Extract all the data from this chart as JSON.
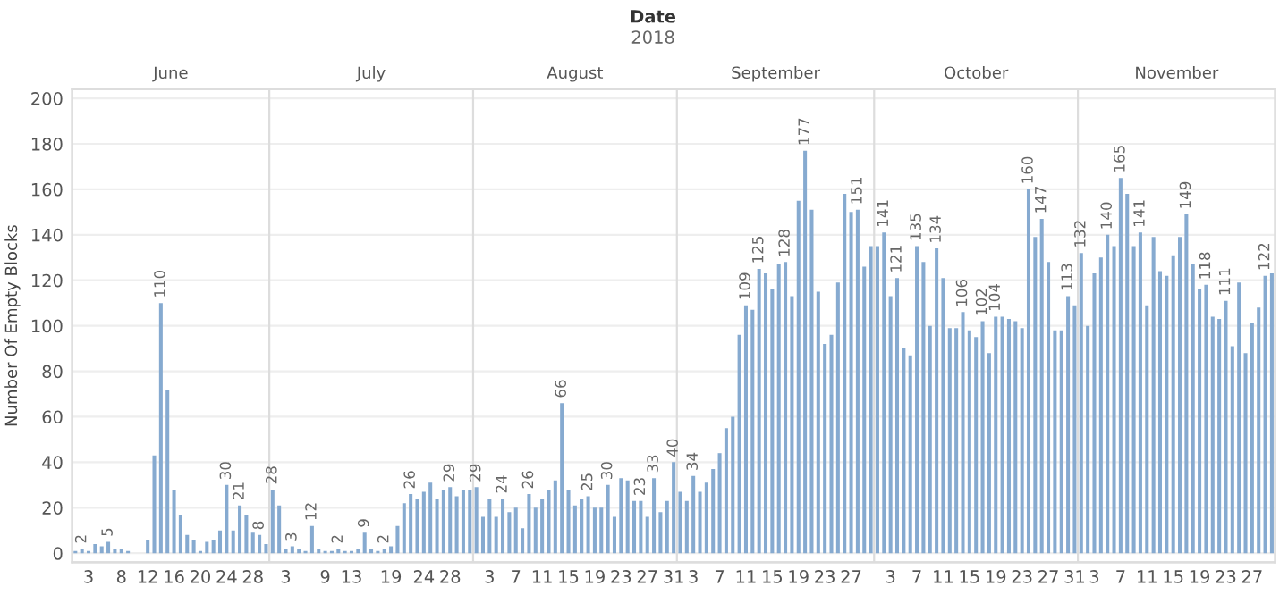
{
  "chart_data": {
    "type": "bar",
    "title": "Date",
    "subtitle": "2018",
    "ylabel": "Number Of Empty Blocks",
    "color": "#86aad0",
    "x": [
      "2018-06-01",
      "2018-06-02",
      "2018-06-03",
      "2018-06-04",
      "2018-06-05",
      "2018-06-06",
      "2018-06-07",
      "2018-06-08",
      "2018-06-09",
      "2018-06-10",
      "2018-06-11",
      "2018-06-12",
      "2018-06-13",
      "2018-06-14",
      "2018-06-15",
      "2018-06-16",
      "2018-06-17",
      "2018-06-18",
      "2018-06-19",
      "2018-06-20",
      "2018-06-21",
      "2018-06-22",
      "2018-06-23",
      "2018-06-24",
      "2018-06-25",
      "2018-06-26",
      "2018-06-27",
      "2018-06-28",
      "2018-06-29",
      "2018-06-30",
      "2018-07-01",
      "2018-07-02",
      "2018-07-03",
      "2018-07-04",
      "2018-07-05",
      "2018-07-06",
      "2018-07-07",
      "2018-07-08",
      "2018-07-09",
      "2018-07-10",
      "2018-07-11",
      "2018-07-12",
      "2018-07-13",
      "2018-07-14",
      "2018-07-15",
      "2018-07-16",
      "2018-07-17",
      "2018-07-18",
      "2018-07-19",
      "2018-07-20",
      "2018-07-21",
      "2018-07-22",
      "2018-07-23",
      "2018-07-24",
      "2018-07-25",
      "2018-07-26",
      "2018-07-27",
      "2018-07-28",
      "2018-07-29",
      "2018-07-30",
      "2018-07-31",
      "2018-08-01",
      "2018-08-02",
      "2018-08-03",
      "2018-08-04",
      "2018-08-05",
      "2018-08-06",
      "2018-08-07",
      "2018-08-08",
      "2018-08-09",
      "2018-08-10",
      "2018-08-11",
      "2018-08-12",
      "2018-08-13",
      "2018-08-14",
      "2018-08-15",
      "2018-08-16",
      "2018-08-17",
      "2018-08-18",
      "2018-08-19",
      "2018-08-20",
      "2018-08-21",
      "2018-08-22",
      "2018-08-23",
      "2018-08-24",
      "2018-08-25",
      "2018-08-26",
      "2018-08-27",
      "2018-08-28",
      "2018-08-29",
      "2018-08-30",
      "2018-08-31",
      "2018-09-01",
      "2018-09-02",
      "2018-09-03",
      "2018-09-04",
      "2018-09-05",
      "2018-09-06",
      "2018-09-07",
      "2018-09-08",
      "2018-09-09",
      "2018-09-10",
      "2018-09-11",
      "2018-09-12",
      "2018-09-13",
      "2018-09-14",
      "2018-09-15",
      "2018-09-16",
      "2018-09-17",
      "2018-09-18",
      "2018-09-19",
      "2018-09-20",
      "2018-09-21",
      "2018-09-22",
      "2018-09-23",
      "2018-09-24",
      "2018-09-25",
      "2018-09-26",
      "2018-09-27",
      "2018-09-28",
      "2018-09-29",
      "2018-09-30",
      "2018-10-01",
      "2018-10-02",
      "2018-10-03",
      "2018-10-04",
      "2018-10-05",
      "2018-10-06",
      "2018-10-07",
      "2018-10-08",
      "2018-10-09",
      "2018-10-10",
      "2018-10-11",
      "2018-10-12",
      "2018-10-13",
      "2018-10-14",
      "2018-10-15",
      "2018-10-16",
      "2018-10-17",
      "2018-10-18",
      "2018-10-19",
      "2018-10-20",
      "2018-10-21",
      "2018-10-22",
      "2018-10-23",
      "2018-10-24",
      "2018-10-25",
      "2018-10-26",
      "2018-10-27",
      "2018-10-28",
      "2018-10-29",
      "2018-10-30",
      "2018-10-31",
      "2018-11-01",
      "2018-11-02",
      "2018-11-03",
      "2018-11-04",
      "2018-11-05",
      "2018-11-06",
      "2018-11-07",
      "2018-11-08",
      "2018-11-09",
      "2018-11-10",
      "2018-11-11",
      "2018-11-12",
      "2018-11-13",
      "2018-11-14",
      "2018-11-15",
      "2018-11-16",
      "2018-11-17",
      "2018-11-18",
      "2018-11-19",
      "2018-11-20",
      "2018-11-21",
      "2018-11-22",
      "2018-11-23",
      "2018-11-24",
      "2018-11-25",
      "2018-11-26",
      "2018-11-27",
      "2018-11-28",
      "2018-11-29",
      "2018-11-30"
    ],
    "values": [
      1,
      2,
      1,
      4,
      3,
      5,
      2,
      2,
      1,
      0,
      0,
      6,
      43,
      110,
      72,
      28,
      17,
      8,
      6,
      1,
      5,
      6,
      10,
      30,
      10,
      21,
      17,
      9,
      8,
      4,
      28,
      21,
      2,
      3,
      2,
      1,
      12,
      2,
      1,
      1,
      2,
      1,
      1,
      2,
      9,
      2,
      1,
      2,
      3,
      12,
      22,
      26,
      24,
      27,
      31,
      24,
      28,
      29,
      25,
      28,
      28,
      29,
      16,
      24,
      16,
      24,
      18,
      20,
      11,
      26,
      20,
      24,
      28,
      32,
      66,
      28,
      21,
      24,
      25,
      20,
      20,
      30,
      16,
      33,
      32,
      23,
      23,
      16,
      33,
      18,
      23,
      40,
      27,
      23,
      34,
      27,
      31,
      37,
      44,
      55,
      60,
      96,
      109,
      107,
      125,
      123,
      116,
      127,
      128,
      113,
      155,
      177,
      151,
      115,
      92,
      96,
      119,
      158,
      150,
      151,
      126,
      135,
      135,
      141,
      113,
      121,
      90,
      87,
      135,
      128,
      100,
      134,
      121,
      99,
      99,
      106,
      98,
      95,
      102,
      88,
      104,
      104,
      103,
      102,
      99,
      160,
      139,
      147,
      128,
      98,
      98,
      113,
      109,
      132,
      100,
      123,
      130,
      140,
      135,
      165,
      158,
      135,
      141,
      109,
      139,
      124,
      122,
      131,
      139,
      149,
      127,
      116,
      118,
      104,
      103,
      111,
      91,
      119,
      88,
      101,
      108,
      122,
      123
    ],
    "value_labels": [
      null,
      "2",
      null,
      null,
      null,
      "5",
      null,
      null,
      null,
      null,
      null,
      null,
      null,
      "110",
      null,
      null,
      null,
      null,
      null,
      null,
      null,
      null,
      null,
      "30",
      null,
      "21",
      null,
      null,
      "8",
      null,
      "28",
      null,
      null,
      "3",
      null,
      null,
      "12",
      null,
      null,
      null,
      "2",
      null,
      null,
      null,
      "9",
      null,
      null,
      "2",
      null,
      null,
      null,
      "26",
      null,
      null,
      null,
      null,
      null,
      "29",
      null,
      null,
      null,
      "29",
      null,
      null,
      null,
      "24",
      null,
      null,
      null,
      "26",
      null,
      null,
      null,
      null,
      "66",
      null,
      null,
      null,
      "25",
      null,
      null,
      "30",
      null,
      null,
      null,
      null,
      "23",
      null,
      "33",
      null,
      null,
      "40",
      null,
      null,
      "34",
      null,
      null,
      null,
      null,
      null,
      null,
      null,
      "109",
      null,
      "125",
      null,
      null,
      null,
      "128",
      null,
      null,
      "177",
      null,
      null,
      null,
      null,
      null,
      null,
      null,
      "151",
      null,
      null,
      null,
      "141",
      null,
      "121",
      null,
      null,
      "135",
      null,
      null,
      "134",
      null,
      null,
      null,
      "106",
      null,
      null,
      "102",
      null,
      "104",
      null,
      null,
      null,
      null,
      "160",
      null,
      "147",
      null,
      null,
      null,
      "113",
      null,
      "132",
      null,
      null,
      null,
      "140",
      null,
      "165",
      null,
      null,
      "141",
      null,
      null,
      null,
      null,
      null,
      null,
      "149",
      null,
      null,
      "118",
      null,
      null,
      "111",
      null,
      null,
      null,
      null,
      null,
      "122",
      null
    ],
    "xlim": [
      "2018-05-31T12:00",
      "2018-11-30T12:00"
    ],
    "xticks": [
      {
        "value": "2018-06-03",
        "label": "3"
      },
      {
        "value": "2018-06-08",
        "label": "8"
      },
      {
        "value": "2018-06-12",
        "label": "12"
      },
      {
        "value": "2018-06-16",
        "label": "16"
      },
      {
        "value": "2018-06-20",
        "label": "20"
      },
      {
        "value": "2018-06-24",
        "label": "24"
      },
      {
        "value": "2018-06-28",
        "label": "28"
      },
      {
        "value": "2018-07-03",
        "label": "3"
      },
      {
        "value": "2018-07-09",
        "label": "9"
      },
      {
        "value": "2018-07-13",
        "label": "13"
      },
      {
        "value": "2018-07-19",
        "label": "19"
      },
      {
        "value": "2018-07-24",
        "label": "24"
      },
      {
        "value": "2018-07-28",
        "label": "28"
      },
      {
        "value": "2018-08-03",
        "label": "3"
      },
      {
        "value": "2018-08-07",
        "label": "7"
      },
      {
        "value": "2018-08-11",
        "label": "11"
      },
      {
        "value": "2018-08-15",
        "label": "15"
      },
      {
        "value": "2018-08-19",
        "label": "19"
      },
      {
        "value": "2018-08-23",
        "label": "23"
      },
      {
        "value": "2018-08-27",
        "label": "27"
      },
      {
        "value": "2018-08-31",
        "label": "31"
      },
      {
        "value": "2018-09-03",
        "label": "3"
      },
      {
        "value": "2018-09-07",
        "label": "7"
      },
      {
        "value": "2018-09-11",
        "label": "11"
      },
      {
        "value": "2018-09-15",
        "label": "15"
      },
      {
        "value": "2018-09-19",
        "label": "19"
      },
      {
        "value": "2018-09-23",
        "label": "23"
      },
      {
        "value": "2018-09-27",
        "label": "27"
      },
      {
        "value": "2018-10-03",
        "label": "3"
      },
      {
        "value": "2018-10-07",
        "label": "7"
      },
      {
        "value": "2018-10-11",
        "label": "11"
      },
      {
        "value": "2018-10-15",
        "label": "15"
      },
      {
        "value": "2018-10-19",
        "label": "19"
      },
      {
        "value": "2018-10-23",
        "label": "23"
      },
      {
        "value": "2018-10-27",
        "label": "27"
      },
      {
        "value": "2018-10-31",
        "label": "31"
      },
      {
        "value": "2018-11-03",
        "label": "3"
      },
      {
        "value": "2018-11-07",
        "label": "7"
      },
      {
        "value": "2018-11-11",
        "label": "11"
      },
      {
        "value": "2018-11-15",
        "label": "15"
      },
      {
        "value": "2018-11-19",
        "label": "19"
      },
      {
        "value": "2018-11-23",
        "label": "23"
      },
      {
        "value": "2018-11-27",
        "label": "27"
      }
    ],
    "ylim": [
      -4,
      204
    ],
    "yticks": [
      0,
      20,
      40,
      60,
      80,
      100,
      120,
      140,
      160,
      180,
      200
    ],
    "grid": "y",
    "x2lim": [
      "2018-05-31T12:00",
      "2018-11-30T12:00"
    ],
    "x2ticks": [
      {
        "value": "2018-06-15T12:00",
        "label": "June"
      },
      {
        "value": "2018-07-16",
        "label": "July"
      },
      {
        "value": "2018-08-16",
        "label": "August"
      },
      {
        "value": "2018-09-15T12:00",
        "label": "September"
      },
      {
        "value": "2018-10-16",
        "label": "October"
      },
      {
        "value": "2018-11-15T12:00",
        "label": "November"
      }
    ],
    "ref_lines": [
      {
        "axis": "x",
        "value": "2018-06-30T12:00",
        "color": "#dddddd"
      },
      {
        "axis": "x",
        "value": "2018-07-31T12:00",
        "color": "#dddddd"
      },
      {
        "axis": "x",
        "value": "2018-08-31T12:00",
        "color": "#dddddd"
      },
      {
        "axis": "x",
        "value": "2018-09-30T12:00",
        "color": "#dddddd"
      },
      {
        "axis": "x",
        "value": "2018-10-31T12:00",
        "color": "#dddddd"
      }
    ]
  }
}
